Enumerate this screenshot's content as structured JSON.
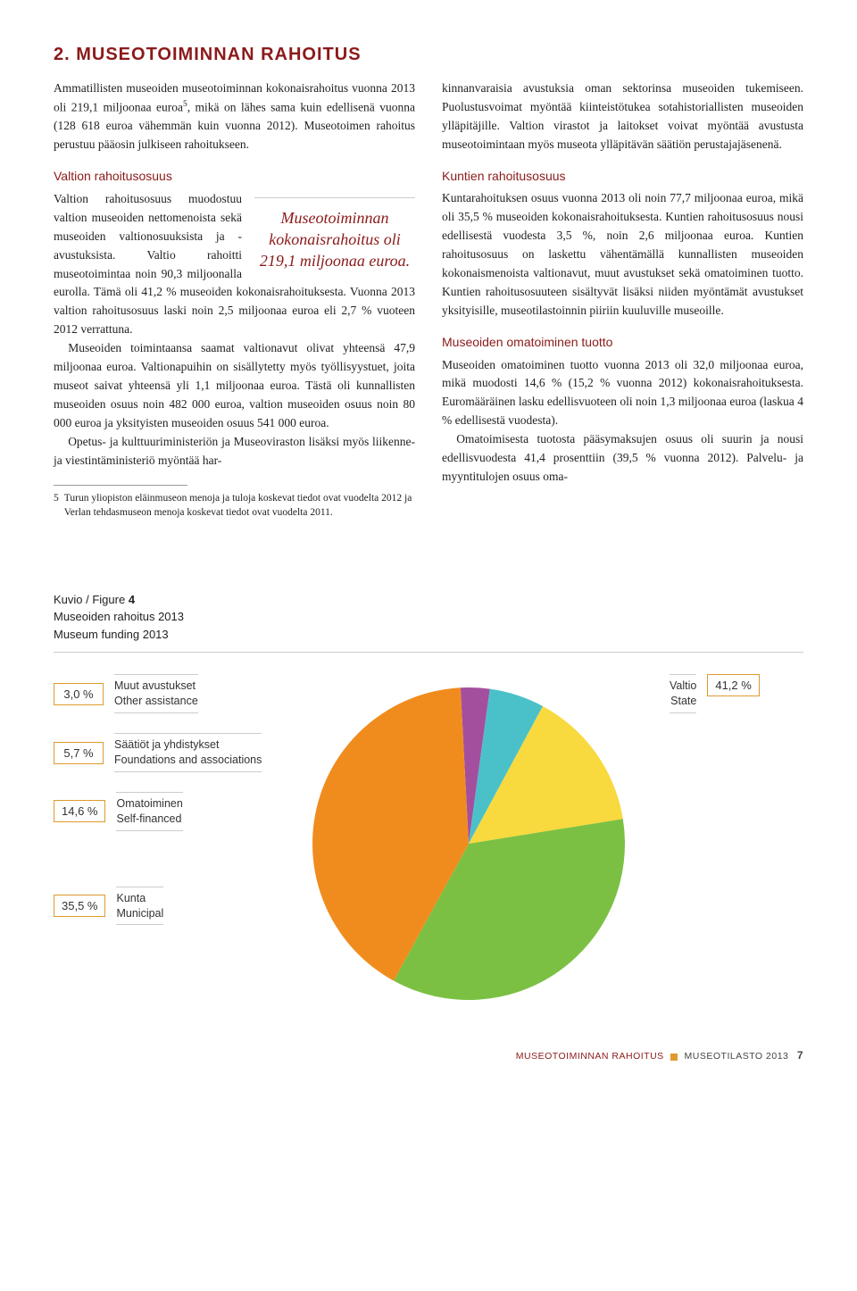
{
  "title": "2. MUSEOTOIMINNAN RAHOITUS",
  "left": {
    "intro": "Ammatillisten museoiden museotoiminnan kokonaisrahoitus vuonna 2013 oli 219,1 miljoonaa euroa",
    "intro_after_sup": ", mikä on lähes sama kuin edellisenä vuonna (128 618 euroa vähemmän kuin vuonna 2012). Museotoimen rahoitus perustuu pääosin julkiseen rahoitukseen.",
    "sup": "5",
    "sub1": "Valtion rahoitusosuus",
    "p1": "Valtion rahoitusosuus muodostuu valtion museoiden nettomenoista sekä museoiden valtionosuuksista ja -avustuksista. Valtio rahoitti museotoimintaa noin 90,3 miljoonalla eurolla. Tämä oli 41,2 % museoiden kokonaisrahoituksesta. Vuonna 2013 valtion rahoitusosuus laski noin 2,5 miljoonaa euroa eli 2,7 % vuoteen 2012 verrattuna.",
    "p1b": "Museoiden toimintaansa saamat valtionavut olivat yhteensä 47,9 miljoonaa euroa. Valtionapuihin on sisällytetty myös työllisyystuet, joita museot saivat yhteensä yli 1,1 miljoonaa euroa. Tästä oli kunnallisten museoiden osuus noin 482 000 euroa, valtion museoiden osuus noin 80 000 euroa ja yksityisten museoiden osuus 541 000 euroa.",
    "p1c": "Opetus- ja kulttuuriministeriön ja Museoviraston lisäksi myös liikenne- ja viestintäministeriö myöntää har-",
    "pullquote": "Museotoiminnan kokonaisrahoitus oli 219,1 miljoonaa euroa.",
    "fn_num": "5",
    "fn": "Turun yliopiston eläinmuseon menoja ja tuloja koskevat tiedot ovat vuodelta 2012 ja Verlan tehdasmuseon menoja koskevat tiedot ovat vuodelta 2011."
  },
  "right": {
    "p0": "kinnanvaraisia avustuksia oman sektorinsa museoiden tukemiseen. Puolustusvoimat myöntää kiinteistötukea sotahistoriallisten museoiden ylläpitäjille. Valtion virastot ja laitokset voivat myöntää avustusta museotoimintaan myös museota ylläpitävän säätiön perustajajäsenenä.",
    "sub2": "Kuntien rahoitusosuus",
    "p2": "Kuntarahoituksen osuus vuonna 2013 oli noin 77,7 miljoonaa euroa, mikä oli 35,5 % museoiden kokonaisrahoituksesta. Kuntien rahoitusosuus nousi edellisestä vuodesta 3,5 %, noin 2,6 miljoonaa euroa. Kuntien rahoitusosuus on laskettu vähentämällä kunnallisten museoiden kokonaismenoista valtionavut, muut avustukset sekä omatoiminen tuotto. Kuntien rahoitusosuuteen sisältyvät lisäksi niiden myöntämät avustukset yksityisille, museotilastoinnin piiriin kuuluville museoille.",
    "sub3": "Museoiden omatoiminen tuotto",
    "p3": "Museoiden omatoiminen tuotto vuonna 2013 oli 32,0 miljoonaa euroa, mikä muodosti 14,6 % (15,2 % vuonna 2012) kokonaisrahoituksesta. Euromääräinen lasku edellisvuoteen oli noin 1,3 miljoonaa euroa (laskua 4 % edellisestä vuodesta).",
    "p3b": "Omatoimisesta tuotosta pääsymaksujen osuus oli suurin ja nousi edellisvuodesta 41,4 prosenttiin (39,5 % vuonna 2012). Palvelu- ja myyntitulojen osuus oma-"
  },
  "figure": {
    "label": "Kuvio / Figure",
    "num": "4",
    "title_fi": "Museoiden rahoitus 2013",
    "title_en": "Museum funding 2013",
    "slices": [
      {
        "label_fi": "Valtio",
        "label_en": "State",
        "pct": "41,2 %",
        "value": 41.2,
        "color": "#f08c1e"
      },
      {
        "label_fi": "Kunta",
        "label_en": "Municipal",
        "pct": "35,5 %",
        "value": 35.5,
        "color": "#7bc043"
      },
      {
        "label_fi": "Omatoiminen",
        "label_en": "Self-financed",
        "pct": "14,6 %",
        "value": 14.6,
        "color": "#f8d93e"
      },
      {
        "label_fi": "Säätiöt ja yhdistykset",
        "label_en": "Foundations and associations",
        "pct": "5,7 %",
        "value": 5.7,
        "color": "#4ac1c9"
      },
      {
        "label_fi": "Muut avustukset",
        "label_en": "Other assistance",
        "pct": "3,0 %",
        "value": 3.0,
        "color": "#a44f9e"
      }
    ],
    "left_labels": [
      {
        "pct": "3,0 %",
        "fi": "Muut avustukset",
        "en": "Other assistance"
      },
      {
        "pct": "5,7 %",
        "fi": "Säätiöt ja yhdistykset",
        "en": "Foundations and associations"
      },
      {
        "pct": "14,6 %",
        "fi": "Omatoiminen",
        "en": "Self-financed"
      },
      {
        "pct": "35,5 %",
        "fi": "Kunta",
        "en": "Municipal"
      }
    ],
    "right_label": {
      "pct": "41,2 %",
      "fi": "Valtio",
      "en": "State"
    },
    "background_color": "#ffffff"
  },
  "footer": {
    "section": "MUSEOTOIMINNAN RAHOITUS",
    "doc": "MUSEOTILASTO 2013",
    "page": "7"
  }
}
